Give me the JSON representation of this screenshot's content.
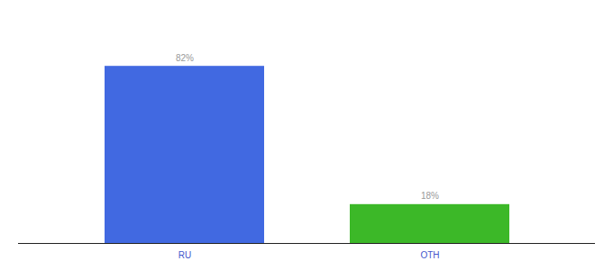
{
  "chart_data": {
    "type": "bar",
    "categories": [
      "RU",
      "OTH"
    ],
    "values": [
      82,
      18
    ],
    "value_labels": [
      "82%",
      "18%"
    ],
    "colors": [
      "#4169e1",
      "#3cb828"
    ],
    "ylim": [
      0,
      100
    ],
    "data_labels": true,
    "tick_labels": "x"
  }
}
